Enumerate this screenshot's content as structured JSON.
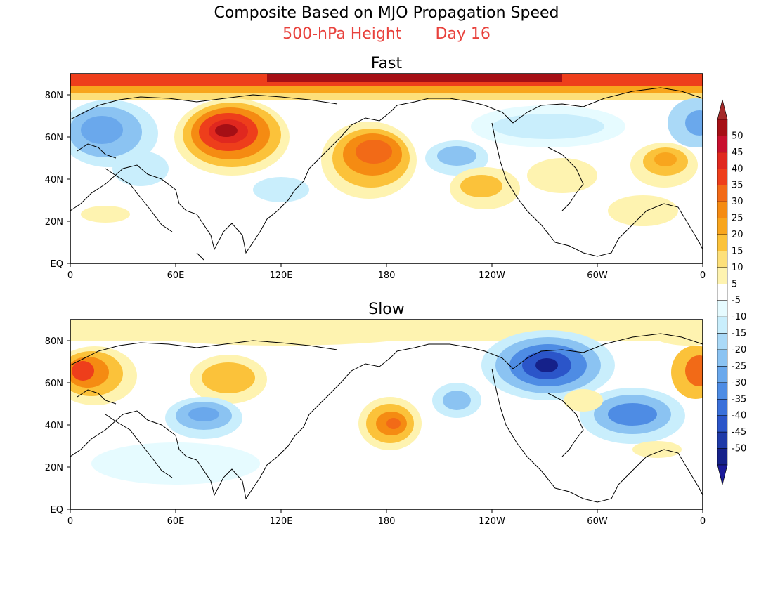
{
  "title": "Composite Based on MJO Propagation Speed",
  "subtitle_left": "500-hPa Height",
  "subtitle_right": "Day 16",
  "panels": [
    {
      "title": "Fast"
    },
    {
      "title": "Slow"
    }
  ],
  "axes": {
    "lat_ticks": [
      "EQ",
      "20N",
      "40N",
      "60N",
      "80N"
    ],
    "lon_ticks": [
      "0",
      "60E",
      "120E",
      "180",
      "120W",
      "60W",
      "0"
    ]
  },
  "colorbar": {
    "labels": [
      "50",
      "45",
      "40",
      "35",
      "30",
      "25",
      "20",
      "15",
      "10",
      "5",
      "-5",
      "-10",
      "-15",
      "-20",
      "-25",
      "-30",
      "-35",
      "-40",
      "-45",
      "-50"
    ],
    "colors": [
      "#a50f15",
      "#c8102e",
      "#e0281f",
      "#ee3e1b",
      "#f26a17",
      "#f58b12",
      "#f8a51d",
      "#fbc23a",
      "#fde07a",
      "#fef3b0",
      "#ffffff",
      "#e6fbff",
      "#c9eefc",
      "#aad9f7",
      "#8bc3f2",
      "#6aa8ec",
      "#4e8ce4",
      "#3a70da",
      "#2b55c9",
      "#1f3aa8",
      "#15218a"
    ],
    "top_arrow_color": "#a52a2a",
    "bottom_arrow_color": "#1a1a9a"
  }
}
